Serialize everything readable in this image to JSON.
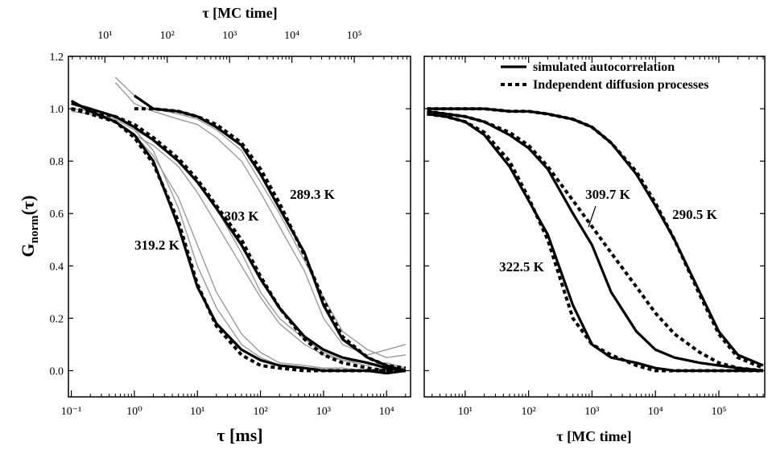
{
  "chart_data": [
    {
      "type": "line",
      "xlog": true,
      "x_label": "τ [ms]",
      "x2_label": "τ [MC time]",
      "y_label": {
        "main": "G",
        "sub": "norm",
        "tail": "(τ)"
      },
      "xlim": [
        0.09,
        24000
      ],
      "ylim": [
        -0.1,
        1.2
      ],
      "xticks": [
        {
          "value": 0.1,
          "label": "10⁻¹"
        },
        {
          "value": 1,
          "label": "10⁰"
        },
        {
          "value": 10,
          "label": "10¹"
        },
        {
          "value": 100,
          "label": "10²"
        },
        {
          "value": 1000,
          "label": "10³"
        },
        {
          "value": 10000,
          "label": "10⁴"
        }
      ],
      "x2lim": [
        2.6,
        800000
      ],
      "x2ticks": [
        {
          "value": 10,
          "label": "10¹"
        },
        {
          "value": 100,
          "label": "10²"
        },
        {
          "value": 1000,
          "label": "10³"
        },
        {
          "value": 10000,
          "label": "10⁴"
        },
        {
          "value": 100000,
          "label": "10⁵"
        }
      ],
      "yticks": [
        {
          "value": 0,
          "label": "0.0"
        },
        0.2,
        0.4,
        0.6,
        0.8,
        {
          "value": 1,
          "label": "1.0"
        },
        1.2
      ],
      "ytick_labels": true,
      "x": [
        0.1,
        0.2,
        0.5,
        1,
        2,
        5,
        10,
        20,
        50,
        100,
        200,
        500,
        1000,
        2000,
        5000,
        10000,
        20000
      ],
      "series": [
        {
          "color": "#9a9a9a",
          "style": "thin",
          "values": [
            1.0,
            0.99,
            0.96,
            0.92,
            0.84,
            0.62,
            0.4,
            0.24,
            0.1,
            0.05,
            0.02,
            0.01,
            0.01,
            0,
            0,
            0.01,
            0
          ]
        },
        {
          "color": "#9a9a9a",
          "style": "thin",
          "values": [
            0.99,
            0.98,
            0.95,
            0.9,
            0.82,
            0.66,
            0.48,
            0.3,
            0.14,
            0.07,
            0.03,
            0.02,
            0.01,
            0.01,
            0,
            0,
            0.01
          ]
        },
        {
          "color": "#9a9a9a",
          "style": "thin",
          "values": [
            null,
            null,
            null,
            0.9,
            0.86,
            0.78,
            0.68,
            0.56,
            0.4,
            0.28,
            0.18,
            0.1,
            0.06,
            0.04,
            0.02,
            0.03,
            0.01
          ]
        },
        {
          "color": "#9a9a9a",
          "style": "thin",
          "values": [
            null,
            null,
            null,
            0.92,
            0.88,
            0.8,
            0.72,
            0.62,
            0.45,
            0.3,
            0.2,
            0.12,
            0.07,
            0.04,
            0.03,
            0.02,
            0.0
          ]
        },
        {
          "color": "#9a9a9a",
          "style": "thin",
          "values": [
            null,
            null,
            1.12,
            1.05,
            1.0,
            0.98,
            0.96,
            0.92,
            0.84,
            0.72,
            0.6,
            0.42,
            0.28,
            0.15,
            0.08,
            0.05,
            0.06
          ]
        },
        {
          "color": "#9a9a9a",
          "style": "thin",
          "values": [
            null,
            null,
            1.1,
            1.02,
            0.99,
            0.96,
            0.94,
            0.89,
            0.8,
            0.68,
            0.55,
            0.38,
            0.2,
            0.1,
            0.06,
            0.08,
            0.1
          ]
        },
        {
          "color": "#000000",
          "style": "solid",
          "values": [
            1.03,
            0.99,
            0.95,
            0.9,
            0.8,
            0.55,
            0.32,
            0.18,
            0.08,
            0.04,
            0.02,
            0.01,
            0.0,
            0.0,
            0.0,
            -0.01,
            0.0
          ]
        },
        {
          "color": "#000000",
          "style": "dashed",
          "values": [
            1.0,
            0.98,
            0.95,
            0.89,
            0.79,
            0.57,
            0.33,
            0.17,
            0.06,
            0.02,
            0.01,
            0,
            0,
            0,
            0,
            0,
            0
          ]
        },
        {
          "color": "#000000",
          "style": "solid",
          "values": [
            1.02,
            1.0,
            0.97,
            0.93,
            0.88,
            0.8,
            0.72,
            0.62,
            0.48,
            0.35,
            0.24,
            0.13,
            0.08,
            0.05,
            0.03,
            0.01,
            0.0
          ]
        },
        {
          "color": "#000000",
          "style": "dashed",
          "values": [
            1.0,
            0.99,
            0.97,
            0.94,
            0.89,
            0.81,
            0.73,
            0.63,
            0.5,
            0.36,
            0.24,
            0.12,
            0.06,
            0.03,
            0.01,
            0.0,
            0.0
          ]
        },
        {
          "color": "#000000",
          "style": "solid",
          "values": [
            null,
            null,
            null,
            1.05,
            1.0,
            0.99,
            0.97,
            0.93,
            0.86,
            0.75,
            0.62,
            0.45,
            0.25,
            0.12,
            0.05,
            0.02,
            0.0
          ]
        },
        {
          "color": "#000000",
          "style": "dashed",
          "values": [
            null,
            null,
            null,
            1.0,
            1.0,
            0.99,
            0.97,
            0.94,
            0.87,
            0.77,
            0.64,
            0.44,
            0.27,
            0.13,
            0.05,
            0.02,
            0.01
          ]
        }
      ],
      "annotations": [
        "319.2 K",
        "303 K",
        "289.3 K"
      ]
    },
    {
      "type": "line",
      "xlog": true,
      "x_label": "τ [MC time]",
      "xlim": [
        2.26,
        530000
      ],
      "ylim": [
        -0.1,
        1.2
      ],
      "xticks": [
        {
          "value": 10,
          "label": "10¹"
        },
        {
          "value": 100,
          "label": "10²"
        },
        {
          "value": 1000,
          "label": "10³"
        },
        {
          "value": 10000,
          "label": "10⁴"
        },
        {
          "value": 100000,
          "label": "10⁵"
        }
      ],
      "yticks": [
        0,
        0.2,
        0.4,
        0.6,
        0.8,
        1,
        1.2
      ],
      "ytick_labels": false,
      "x": [
        2.5,
        5,
        10,
        20,
        50,
        100,
        200,
        500,
        1000,
        2000,
        5000,
        10000,
        20000,
        50000,
        100000,
        200000,
        500000
      ],
      "legend": [
        {
          "name": "simulated autocorrelation",
          "style": "solid"
        },
        {
          "name": "Independent diffusion processes",
          "style": "dashed"
        }
      ],
      "series": [
        {
          "color": "#000000",
          "style": "solid",
          "values": [
            0.98,
            0.97,
            0.95,
            0.9,
            0.78,
            0.65,
            0.52,
            0.25,
            0.1,
            0.05,
            0.03,
            0.01,
            0.0,
            0.0,
            0.0,
            0.0,
            0.0
          ]
        },
        {
          "color": "#000000",
          "style": "dashed",
          "values": [
            0.98,
            0.97,
            0.95,
            0.91,
            0.8,
            0.66,
            0.5,
            0.2,
            0.1,
            0.06,
            0.02,
            0.0,
            0.0,
            0.0,
            0.0,
            0.0,
            0.0
          ]
        },
        {
          "color": "#000000",
          "style": "solid",
          "values": [
            0.99,
            0.98,
            0.97,
            0.95,
            0.9,
            0.85,
            0.77,
            0.6,
            0.48,
            0.3,
            0.15,
            0.08,
            0.05,
            0.03,
            0.02,
            0.01,
            0.0
          ]
        },
        {
          "color": "#000000",
          "style": "dashed",
          "values": [
            0.99,
            0.98,
            0.97,
            0.95,
            0.91,
            0.86,
            0.78,
            0.65,
            0.55,
            0.45,
            0.32,
            0.22,
            0.14,
            0.07,
            0.03,
            0.01,
            0.0
          ]
        },
        {
          "color": "#000000",
          "style": "solid",
          "values": [
            1.0,
            1.0,
            1.0,
            1.0,
            0.99,
            0.99,
            0.98,
            0.96,
            0.93,
            0.87,
            0.75,
            0.63,
            0.5,
            0.3,
            0.15,
            0.06,
            0.02
          ]
        },
        {
          "color": "#000000",
          "style": "dashed",
          "values": [
            1.0,
            1.0,
            1.0,
            1.0,
            0.99,
            0.99,
            0.98,
            0.96,
            0.93,
            0.87,
            0.76,
            0.64,
            0.5,
            0.29,
            0.14,
            0.05,
            0.01
          ]
        }
      ],
      "annotations": [
        "322.5 K",
        "309.7 K",
        "290.5 K"
      ]
    }
  ]
}
